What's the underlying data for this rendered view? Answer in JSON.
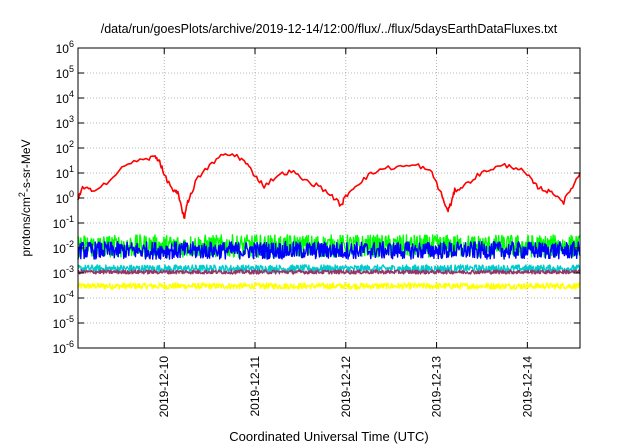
{
  "chart_data": {
    "type": "line",
    "title": "/data/run/goesPlots/archive/2019-12-14/12:00/flux/../flux/5daysEarthDataFluxes.txt",
    "xlabel": "Coordinated Universal Time (UTC)",
    "ylabel_main": "protons/cm",
    "ylabel_sup": "2",
    "ylabel_rest": "-s-sr-MeV",
    "y_scale": "log",
    "ylim_exp": [
      -6,
      6
    ],
    "xlim_days": [
      -0.95,
      4.58
    ],
    "grid": true,
    "legend": "none",
    "x_ticks": [
      {
        "label": "2019-12-10",
        "day": 0
      },
      {
        "label": "2019-12-11",
        "day": 1
      },
      {
        "label": "2019-12-12",
        "day": 2
      },
      {
        "label": "2019-12-13",
        "day": 3
      },
      {
        "label": "2019-12-14",
        "day": 4
      }
    ],
    "y_ticks": [
      {
        "base": "10",
        "exp": "6",
        "e": 6
      },
      {
        "base": "10",
        "exp": "5",
        "e": 5
      },
      {
        "base": "10",
        "exp": "4",
        "e": 4
      },
      {
        "base": "10",
        "exp": "3",
        "e": 3
      },
      {
        "base": "10",
        "exp": "2",
        "e": 2
      },
      {
        "base": "10",
        "exp": "1",
        "e": 1
      },
      {
        "base": "10",
        "exp": "0",
        "e": 0
      },
      {
        "base": "10",
        "exp": "-1",
        "e": -1
      },
      {
        "base": "10",
        "exp": "-2",
        "e": -2
      },
      {
        "base": "10",
        "exp": "-3",
        "e": -3
      },
      {
        "base": "10",
        "exp": "-4",
        "e": -4
      },
      {
        "base": "10",
        "exp": "-5",
        "e": -5
      },
      {
        "base": "10",
        "exp": "-6",
        "e": -6
      }
    ],
    "series": [
      {
        "color": "#ffff00",
        "base": 0.0003,
        "noise_dex": 0.12,
        "n": 900
      },
      {
        "color": "#00cccc",
        "base": 0.0015,
        "noise_dex": 0.15,
        "n": 900
      },
      {
        "color": "#00ff00",
        "base": 0.012,
        "noise_dex": 0.45,
        "n": 900
      },
      {
        "color": "#0000ff",
        "base": 0.008,
        "noise_dex": 0.35,
        "n": 900
      },
      {
        "color": "#993366",
        "base": 0.0011,
        "noise_dex": 0.08,
        "n": 900
      },
      {
        "color": "#ff0000",
        "x": [
          -0.95,
          -0.9,
          -0.8,
          -0.6,
          -0.4,
          -0.2,
          -0.1,
          -0.05,
          0.0,
          0.1,
          0.15,
          0.2,
          0.22,
          0.25,
          0.3,
          0.35,
          0.5,
          0.65,
          0.8,
          0.9,
          1.0,
          1.1,
          1.25,
          1.4,
          1.55,
          1.7,
          1.85,
          1.95,
          2.0,
          2.1,
          2.25,
          2.4,
          2.6,
          2.8,
          2.95,
          3.05,
          3.12,
          3.16,
          3.2,
          3.3,
          3.45,
          3.6,
          3.75,
          3.9,
          4.0,
          4.1,
          4.2,
          4.3,
          4.4,
          4.5,
          4.58
        ],
        "y": [
          0.9,
          2.5,
          2.0,
          5.0,
          25,
          35,
          45,
          30,
          8,
          2,
          1.5,
          0.3,
          0.15,
          0.6,
          1.5,
          5,
          20,
          55,
          50,
          25,
          8,
          3,
          8,
          12,
          5,
          3,
          1.2,
          0.5,
          1.2,
          3,
          8,
          15,
          18,
          20,
          10,
          1.5,
          0.3,
          0.6,
          2,
          3,
          8,
          15,
          20,
          16,
          8,
          3,
          2,
          1.5,
          0.7,
          3,
          10
        ]
      }
    ]
  }
}
